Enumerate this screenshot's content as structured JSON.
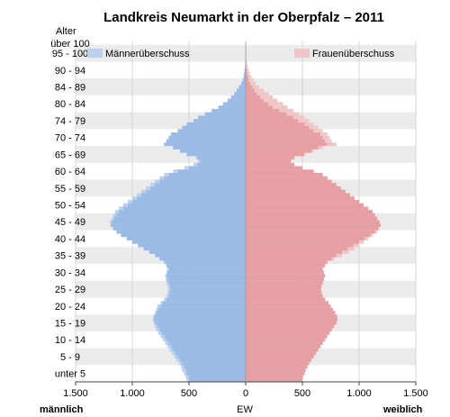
{
  "chart_data": {
    "type": "bar",
    "subtype": "population-pyramid",
    "title": "Landkreis Neumarkt in der Oberpfalz – 2011",
    "y_axis_title": "Alter",
    "xlabel": "EW",
    "x_left_label": "männlich",
    "x_right_label": "weiblich",
    "x_ticks": [
      "1.500",
      "1.000",
      "500",
      "0",
      "500",
      "1.000",
      "1.500"
    ],
    "xlim": [
      -1500,
      1500
    ],
    "age_tick_labels": [
      "über 100",
      "95 - 100",
      "90 - 94",
      "84 - 89",
      "80 - 84",
      "74 - 79",
      "70 - 74",
      "65 - 69",
      "60 - 64",
      "55 - 59",
      "50 - 54",
      "45 - 49",
      "40 - 44",
      "35 - 39",
      "30 - 34",
      "25 - 29",
      "20 - 24",
      "15 - 19",
      "10 - 14",
      "5 - 9",
      "unter 5"
    ],
    "legend": {
      "male_surplus": "Männerüberschuss",
      "female_surplus": "Frauenüberschuss"
    },
    "colors": {
      "male": "#9bbbe6",
      "male_surplus": "#b9d0ee",
      "female": "#e6a0a4",
      "female_surplus": "#f0c7c9",
      "grid_band": "#ebebeb",
      "axis": "#444444"
    },
    "ages": [
      0,
      1,
      2,
      3,
      4,
      5,
      6,
      7,
      8,
      9,
      10,
      11,
      12,
      13,
      14,
      15,
      16,
      17,
      18,
      19,
      20,
      21,
      22,
      23,
      24,
      25,
      26,
      27,
      28,
      29,
      30,
      31,
      32,
      33,
      34,
      35,
      36,
      37,
      38,
      39,
      40,
      41,
      42,
      43,
      44,
      45,
      46,
      47,
      48,
      49,
      50,
      51,
      52,
      53,
      54,
      55,
      56,
      57,
      58,
      59,
      60,
      61,
      62,
      63,
      64,
      65,
      66,
      67,
      68,
      69,
      70,
      71,
      72,
      73,
      74,
      75,
      76,
      77,
      78,
      79,
      80,
      81,
      82,
      83,
      84,
      85,
      86,
      87,
      88,
      89,
      90,
      91,
      92,
      93,
      94,
      95,
      96,
      97,
      98,
      99,
      100
    ],
    "male": [
      520,
      530,
      545,
      560,
      570,
      590,
      610,
      630,
      650,
      670,
      690,
      710,
      730,
      750,
      770,
      790,
      800,
      810,
      820,
      815,
      800,
      790,
      780,
      750,
      720,
      700,
      690,
      685,
      690,
      700,
      705,
      710,
      700,
      690,
      700,
      720,
      760,
      800,
      850,
      900,
      950,
      1000,
      1050,
      1100,
      1140,
      1170,
      1190,
      1200,
      1180,
      1170,
      1150,
      1120,
      1080,
      1040,
      1000,
      960,
      920,
      880,
      840,
      800,
      760,
      720,
      640,
      540,
      460,
      420,
      440,
      520,
      580,
      640,
      720,
      700,
      680,
      660,
      600,
      560,
      520,
      460,
      420,
      360,
      300,
      240,
      200,
      160,
      130,
      100,
      80,
      60,
      40,
      28,
      20,
      14,
      10,
      6,
      4,
      3,
      2,
      1,
      1,
      0,
      0
    ],
    "female": [
      500,
      505,
      520,
      530,
      545,
      560,
      580,
      600,
      620,
      640,
      660,
      680,
      700,
      720,
      740,
      760,
      780,
      800,
      810,
      805,
      790,
      770,
      750,
      730,
      700,
      680,
      670,
      665,
      670,
      680,
      690,
      700,
      690,
      680,
      700,
      720,
      780,
      850,
      910,
      960,
      1000,
      1040,
      1080,
      1120,
      1160,
      1180,
      1190,
      1180,
      1160,
      1140,
      1120,
      1080,
      1040,
      1000,
      960,
      920,
      880,
      840,
      800,
      760,
      720,
      680,
      600,
      500,
      430,
      400,
      430,
      520,
      600,
      680,
      800,
      760,
      740,
      720,
      680,
      640,
      600,
      560,
      520,
      470,
      420,
      370,
      330,
      280,
      240,
      200,
      160,
      120,
      90,
      70,
      50,
      36,
      26,
      18,
      12,
      8,
      5,
      3,
      2,
      1,
      1
    ]
  }
}
